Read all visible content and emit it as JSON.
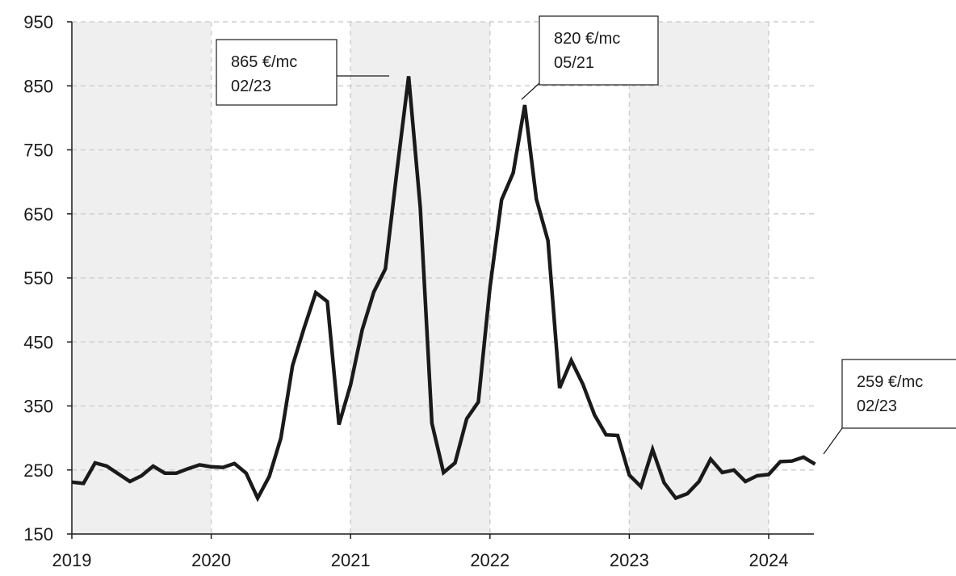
{
  "chart_data": {
    "type": "line",
    "title": "",
    "xlabel": "",
    "ylabel": "",
    "ylim": [
      150,
      950
    ],
    "yticks": [
      150,
      250,
      350,
      450,
      550,
      650,
      750,
      850,
      950
    ],
    "xticks": [
      "2019",
      "2020",
      "2021",
      "2022",
      "2023",
      "2024"
    ],
    "grid": true,
    "legend": "none",
    "colors": {
      "line": "#1a1a1a",
      "shade": "#efefef",
      "grid": "#cfcfcf",
      "axis": "#1a1a1a"
    },
    "series": [
      {
        "x": [
          "2019-01",
          "2019-02",
          "2019-03",
          "2019-04",
          "2019-05",
          "2019-06",
          "2019-07",
          "2019-08",
          "2019-09",
          "2019-10",
          "2019-11",
          "2019-12",
          "2020-01",
          "2020-02",
          "2020-03",
          "2020-04",
          "2020-05",
          "2020-06",
          "2020-07",
          "2020-08",
          "2020-09",
          "2020-10",
          "2020-11",
          "2020-12",
          "2021-01",
          "2021-02",
          "2021-03",
          "2021-04",
          "2021-05",
          "2021-06",
          "2021-07",
          "2021-08",
          "2021-09",
          "2021-10",
          "2021-11",
          "2021-12",
          "2022-01",
          "2022-02",
          "2022-03",
          "2022-04",
          "2022-05",
          "2022-06",
          "2022-07",
          "2022-08",
          "2022-09",
          "2022-10",
          "2022-11",
          "2022-12",
          "2023-01",
          "2023-02",
          "2023-03",
          "2023-04",
          "2023-05",
          "2023-06",
          "2023-07",
          "2023-08",
          "2023-09",
          "2023-10",
          "2023-11",
          "2023-12",
          "2024-01",
          "2024-02",
          "2024-03",
          "2024-04",
          "2024-05"
        ],
        "values": [
          231,
          229,
          261,
          256,
          244,
          232,
          241,
          256,
          245,
          245,
          252,
          258,
          255,
          254,
          260,
          245,
          206,
          240,
          300,
          413,
          472,
          527,
          513,
          321,
          383,
          469,
          528,
          564,
          718,
          865,
          660,
          323,
          246,
          261,
          330,
          356,
          535,
          672,
          714,
          820,
          673,
          608,
          378,
          421,
          384,
          336,
          305,
          304,
          242,
          224,
          282,
          230,
          206,
          213,
          232,
          267,
          246,
          250,
          232,
          241,
          243,
          263,
          264,
          270,
          259
        ]
      }
    ],
    "annotations": [
      {
        "lines": [
          "865 €/mc",
          "02/23"
        ],
        "point_index": 29
      },
      {
        "lines": [
          "820 €/mc",
          "05/21"
        ],
        "point_index": 39
      },
      {
        "lines": [
          "259 €/mc",
          "02/23"
        ],
        "point_index": 64
      }
    ]
  }
}
